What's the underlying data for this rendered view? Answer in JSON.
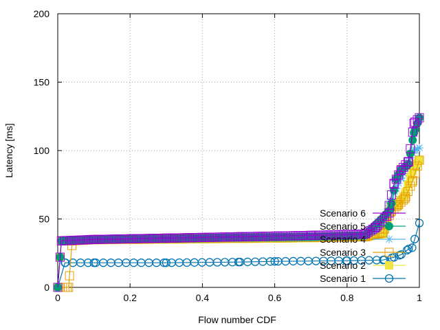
{
  "chart_data": {
    "type": "line",
    "title": "",
    "xlabel": "Flow number CDF",
    "ylabel": "Latency [ms]",
    "xlim": [
      0,
      1
    ],
    "ylim": [
      0,
      200
    ],
    "xticks": [
      "0",
      "0.2",
      "0.4",
      "0.6",
      "0.8",
      "1"
    ],
    "yticks": [
      "0",
      "50",
      "100",
      "150",
      "200"
    ],
    "grid": true,
    "legend_position": "bottom-right",
    "series": [
      {
        "name": "Scenario 6",
        "color": "#9400d3",
        "marker": "square-open",
        "points": [
          [
            0,
            0
          ],
          [
            0.01,
            34
          ],
          [
            0.1,
            35
          ],
          [
            0.3,
            36
          ],
          [
            0.5,
            37
          ],
          [
            0.7,
            38
          ],
          [
            0.85,
            39
          ],
          [
            0.88,
            44
          ],
          [
            0.91,
            52
          ],
          [
            0.93,
            76
          ],
          [
            0.95,
            86
          ],
          [
            0.97,
            92
          ],
          [
            0.985,
            120
          ],
          [
            1,
            124
          ]
        ]
      },
      {
        "name": "Scenario 5",
        "color": "#009e73",
        "marker": "circle-filled",
        "points": [
          [
            0,
            0
          ],
          [
            0.01,
            34
          ],
          [
            0.1,
            35
          ],
          [
            0.3,
            35.5
          ],
          [
            0.5,
            36.5
          ],
          [
            0.7,
            37
          ],
          [
            0.85,
            38
          ],
          [
            0.88,
            46
          ],
          [
            0.9,
            51
          ],
          [
            0.92,
            57
          ],
          [
            0.935,
            79
          ],
          [
            0.95,
            86
          ],
          [
            0.97,
            90
          ],
          [
            0.985,
            113
          ],
          [
            1,
            124
          ]
        ]
      },
      {
        "name": "Scenario 4",
        "color": "#56b4e9",
        "marker": "star",
        "points": [
          [
            0,
            0
          ],
          [
            0.01,
            34
          ],
          [
            0.1,
            35
          ],
          [
            0.3,
            35.5
          ],
          [
            0.5,
            36
          ],
          [
            0.7,
            36.5
          ],
          [
            0.85,
            38
          ],
          [
            0.88,
            42
          ],
          [
            0.9,
            49
          ],
          [
            0.92,
            62
          ],
          [
            0.935,
            72
          ],
          [
            0.95,
            80
          ],
          [
            0.97,
            92
          ],
          [
            0.985,
            100
          ],
          [
            1,
            102
          ]
        ]
      },
      {
        "name": "Scenario 3",
        "color": "#e69f00",
        "marker": "square-open",
        "points": [
          [
            0,
            0
          ],
          [
            0.03,
            0
          ],
          [
            0.04,
            34
          ],
          [
            0.1,
            35
          ],
          [
            0.3,
            35.5
          ],
          [
            0.5,
            36
          ],
          [
            0.7,
            36.5
          ],
          [
            0.85,
            37
          ],
          [
            0.9,
            40
          ],
          [
            0.92,
            55
          ],
          [
            0.94,
            60
          ],
          [
            0.96,
            65
          ],
          [
            0.98,
            77
          ],
          [
            1,
            93
          ]
        ]
      },
      {
        "name": "Scenario 2",
        "color": "#f0e442",
        "marker": "square-filled",
        "points": [
          [
            0,
            0
          ],
          [
            0.01,
            34
          ],
          [
            0.1,
            34.5
          ],
          [
            0.3,
            35
          ],
          [
            0.5,
            35.5
          ],
          [
            0.7,
            36
          ],
          [
            0.85,
            37
          ],
          [
            0.9,
            39
          ],
          [
            0.92,
            59
          ],
          [
            0.94,
            61
          ],
          [
            0.96,
            68
          ],
          [
            0.98,
            85
          ],
          [
            1,
            93
          ]
        ]
      },
      {
        "name": "Scenario 1",
        "color": "#0072b2",
        "marker": "circle-open",
        "points": [
          [
            0,
            0
          ],
          [
            0.02,
            18
          ],
          [
            0.1,
            18
          ],
          [
            0.3,
            18
          ],
          [
            0.5,
            18.5
          ],
          [
            0.6,
            19
          ],
          [
            0.8,
            19.5
          ],
          [
            0.9,
            20
          ],
          [
            0.93,
            22
          ],
          [
            0.95,
            24
          ],
          [
            0.97,
            28
          ],
          [
            0.98,
            29
          ],
          [
            1,
            47
          ]
        ]
      }
    ]
  }
}
